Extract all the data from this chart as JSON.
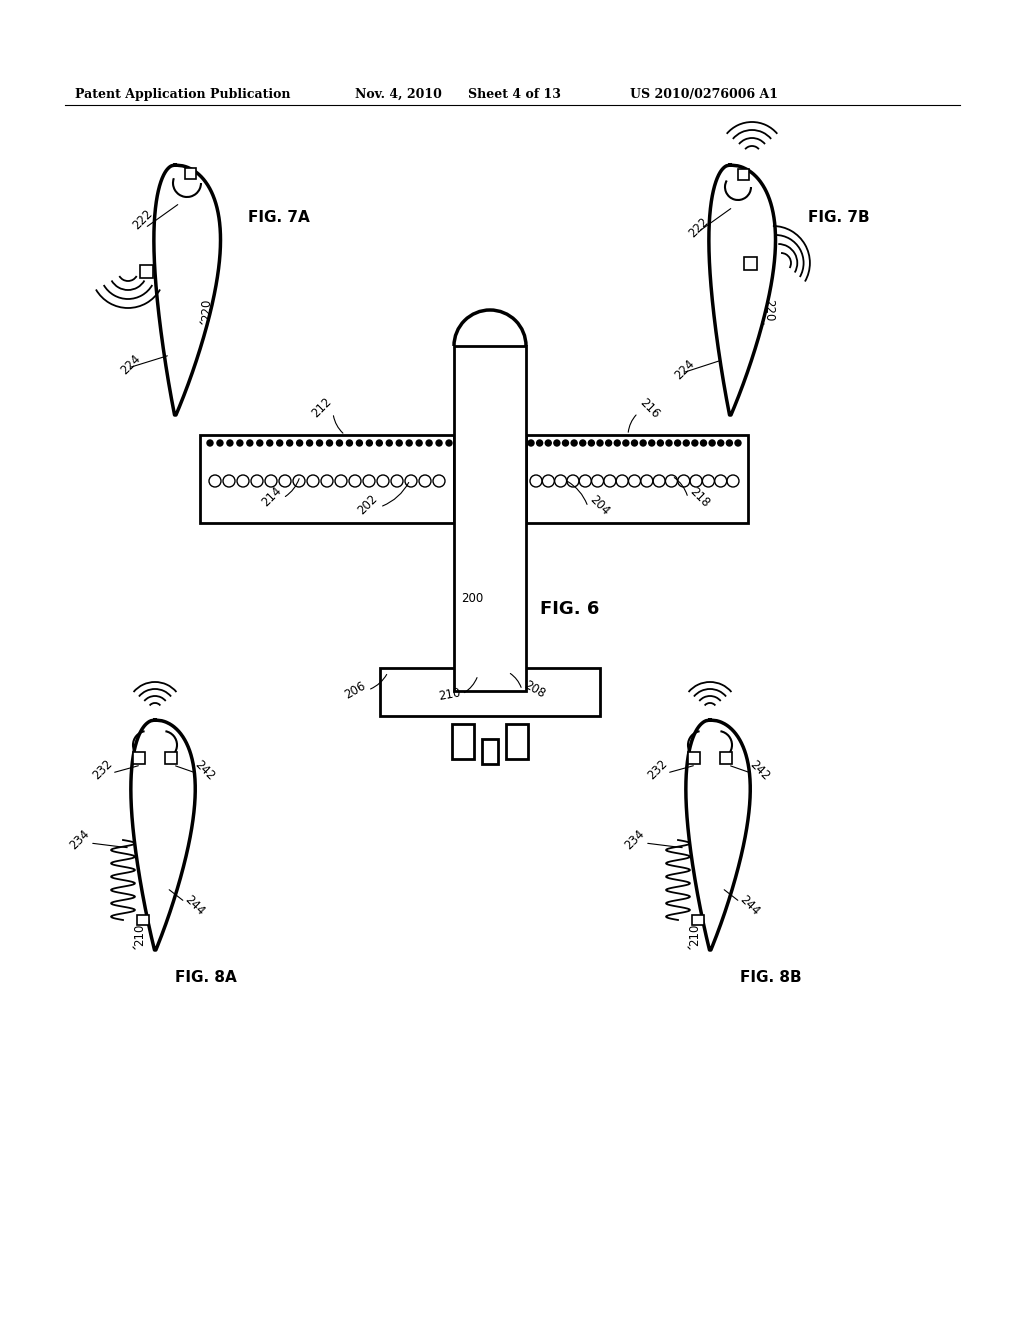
{
  "bg_color": "#ffffff",
  "header_text": "Patent Application Publication",
  "header_date": "Nov. 4, 2010",
  "header_sheet": "Sheet 4 of 13",
  "header_patent": "US 2010/0276006 A1",
  "fig6_label": "FIG. 6",
  "fig7a_label": "FIG. 7A",
  "fig7b_label": "FIG. 7B",
  "fig8a_label": "FIG. 8A",
  "fig8b_label": "FIG. 8B"
}
